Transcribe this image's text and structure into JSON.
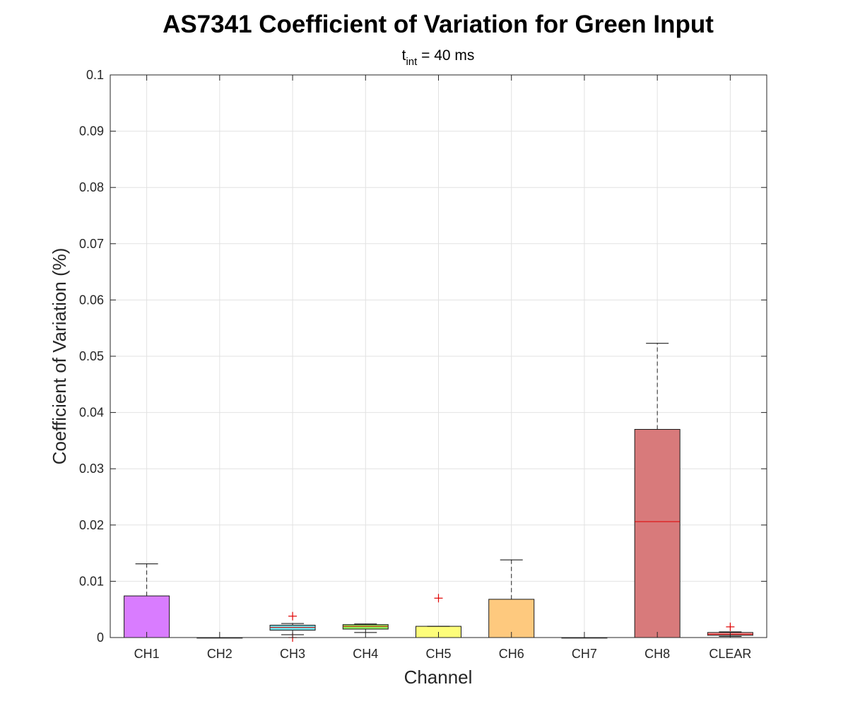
{
  "chart_data": {
    "type": "box",
    "title": "AS7341 Coefficient of Variation for Green Input",
    "subtitle": {
      "main": "t",
      "sub": "int",
      "rest": " = 40 ms"
    },
    "xlabel": "Channel",
    "ylabel": "Coefficient of Variation (%)",
    "ylim": [
      0,
      0.1
    ],
    "yticks": [
      0,
      0.01,
      0.02,
      0.03,
      0.04,
      0.05,
      0.06,
      0.07,
      0.08,
      0.09,
      0.1
    ],
    "ytick_labels": [
      "0",
      "0.01",
      "0.02",
      "0.03",
      "0.04",
      "0.05",
      "0.06",
      "0.07",
      "0.08",
      "0.09",
      "0.1"
    ],
    "grid": true,
    "categories": [
      "CH1",
      "CH2",
      "CH3",
      "CH4",
      "CH5",
      "CH6",
      "CH7",
      "CH8",
      "CLEAR"
    ],
    "boxes": [
      {
        "category": "CH1",
        "color": "#d97cff",
        "whisker_low": 0,
        "q1": 0,
        "median": 0,
        "q3": 0.0074,
        "whisker_high": 0.0131,
        "outliers": []
      },
      {
        "category": "CH2",
        "color": "#9fa8d8",
        "whisker_low": 0,
        "q1": 0,
        "median": 0,
        "q3": 0,
        "whisker_high": 0,
        "outliers": []
      },
      {
        "category": "CH3",
        "color": "#72dde6",
        "whisker_low": 0.0005,
        "q1": 0.0013,
        "median": 0.0018,
        "q3": 0.0022,
        "whisker_high": 0.0025,
        "outliers": [
          0.0038,
          0
        ]
      },
      {
        "category": "CH4",
        "color": "#8cf05e",
        "whisker_low": 0.0009,
        "q1": 0.0015,
        "median": 0.002,
        "q3": 0.0023,
        "whisker_high": 0.0024,
        "outliers": []
      },
      {
        "category": "CH5",
        "color": "#fdfd7a",
        "whisker_low": 0,
        "q1": 0,
        "median": 0,
        "q3": 0.002,
        "whisker_high": 0.002,
        "outliers": [
          0.007
        ]
      },
      {
        "category": "CH6",
        "color": "#fec97e",
        "whisker_low": 0,
        "q1": 0,
        "median": 0,
        "q3": 0.0068,
        "whisker_high": 0.0138,
        "outliers": []
      },
      {
        "category": "CH7",
        "color": "#c9b3b3",
        "whisker_low": 0,
        "q1": 0,
        "median": 0,
        "q3": 0,
        "whisker_high": 0,
        "outliers": []
      },
      {
        "category": "CH8",
        "color": "#d87a7b",
        "whisker_low": 0,
        "q1": 0,
        "median": 0.0206,
        "q3": 0.037,
        "whisker_high": 0.0523,
        "outliers": []
      },
      {
        "category": "CLEAR",
        "color": "#f1a7a7",
        "whisker_low": 0.0002,
        "q1": 0.0004,
        "median": 0.0006,
        "q3": 0.0009,
        "whisker_high": 0.001,
        "outliers": [
          0.0019
        ]
      }
    ]
  }
}
